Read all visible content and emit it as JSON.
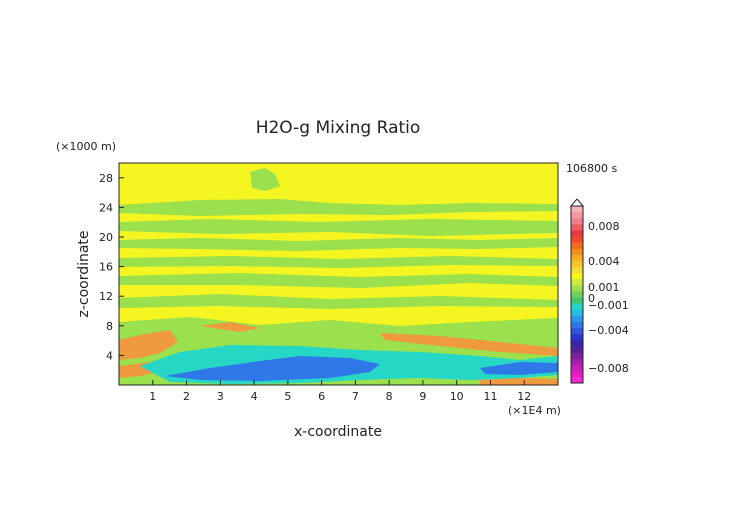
{
  "chart_data": {
    "type": "heatmap",
    "title": "H2O-g Mixing Ratio",
    "xlabel": "x-coordinate",
    "ylabel": "z-coordinate",
    "x_unit": "(×1E4 m)",
    "y_unit": "(×1000 m)",
    "time_label": "106800 s",
    "xlim": [
      0,
      13
    ],
    "ylim": [
      0,
      30
    ],
    "x_ticks": [
      "1",
      "2",
      "3",
      "4",
      "5",
      "6",
      "7",
      "8",
      "9",
      "10",
      "11",
      "12"
    ],
    "y_ticks": [
      "4",
      "8",
      "12",
      "16",
      "20",
      "24",
      "28"
    ],
    "grid": false,
    "legend_position": "right",
    "colorbar_labels": [
      "0.008",
      "0.004",
      "0.001",
      "0",
      "−0.001",
      "−0.004",
      "−0.008"
    ],
    "colors": {
      "yellow": "#f5f521",
      "green": "#9be04d",
      "orange": "#ef9a3c",
      "cyan": "#27d7c6",
      "blue": "#2f78e8",
      "background": "#ffffff"
    }
  }
}
